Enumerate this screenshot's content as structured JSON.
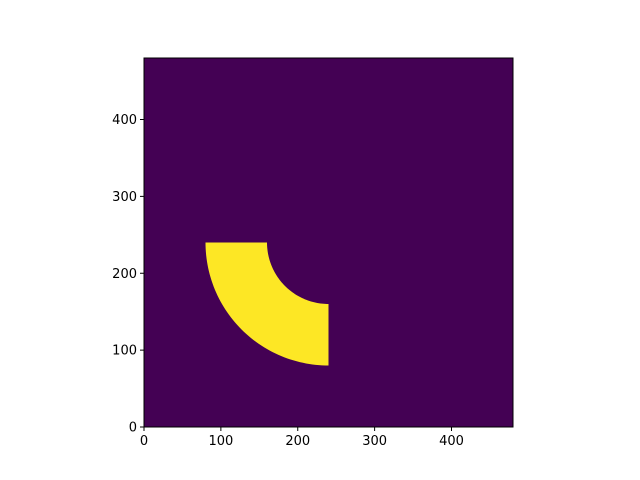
{
  "chart_data": {
    "type": "heatmap",
    "title": "",
    "xlabel": "",
    "ylabel": "",
    "xlim": [
      0,
      480
    ],
    "ylim": [
      0,
      480
    ],
    "x_ticks": [
      0,
      100,
      200,
      300,
      400
    ],
    "y_ticks": [
      0,
      100,
      200,
      300,
      400
    ],
    "x_tick_labels": [
      "0",
      "100",
      "200",
      "300",
      "400"
    ],
    "y_tick_labels": [
      "0",
      "100",
      "200",
      "300",
      "400"
    ],
    "grid": false,
    "colormap": "viridis",
    "background_value": 0,
    "shape_value": 1,
    "colors": {
      "background": "#440154",
      "shape": "#fde725"
    },
    "shape": {
      "kind": "annular-sector",
      "center": [
        240,
        240
      ],
      "inner_radius": 80,
      "outer_radius": 160,
      "angle_start_deg": 180,
      "angle_end_deg": 270
    }
  }
}
